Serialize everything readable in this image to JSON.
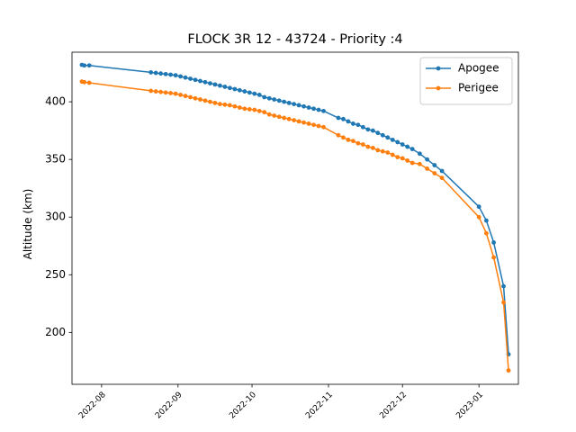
{
  "chart_data": {
    "type": "line",
    "title": "FLOCK 3R 12 - 43724 - Priority :4",
    "xlabel": "",
    "ylabel": "Altitude (km)",
    "x_tick_labels": [
      "2022-08",
      "2022-09",
      "2022-10",
      "2022-11",
      "2022-12",
      "2023-01"
    ],
    "x_ticks": [
      "2022-08-01",
      "2022-09-01",
      "2022-10-01",
      "2022-11-01",
      "2022-12-01",
      "2023-01-01"
    ],
    "xlim": [
      "2022-07-20",
      "2023-01-17"
    ],
    "y_ticks": [
      200,
      250,
      300,
      350,
      400
    ],
    "ylim": [
      155,
      443
    ],
    "grid": false,
    "legend_position": "top-right",
    "series": [
      {
        "name": "Apogee",
        "color": "#1f77b4",
        "points": [
          [
            "2022-07-24",
            432
          ],
          [
            "2022-07-25",
            431.5
          ],
          [
            "2022-07-27",
            431.5
          ],
          [
            "2022-08-21",
            425.5
          ],
          [
            "2022-08-23",
            425
          ],
          [
            "2022-08-25",
            424.5
          ],
          [
            "2022-08-27",
            424
          ],
          [
            "2022-08-29",
            423.5
          ],
          [
            "2022-08-31",
            423
          ],
          [
            "2022-09-02",
            422
          ],
          [
            "2022-09-04",
            421
          ],
          [
            "2022-09-06",
            420
          ],
          [
            "2022-09-08",
            419
          ],
          [
            "2022-09-10",
            418
          ],
          [
            "2022-09-12",
            417
          ],
          [
            "2022-09-14",
            416
          ],
          [
            "2022-09-16",
            415
          ],
          [
            "2022-09-18",
            414
          ],
          [
            "2022-09-20",
            413
          ],
          [
            "2022-09-22",
            412
          ],
          [
            "2022-09-24",
            411
          ],
          [
            "2022-09-26",
            410
          ],
          [
            "2022-09-28",
            409
          ],
          [
            "2022-09-30",
            408
          ],
          [
            "2022-10-02",
            407
          ],
          [
            "2022-10-04",
            406
          ],
          [
            "2022-10-06",
            404
          ],
          [
            "2022-10-08",
            403
          ],
          [
            "2022-10-10",
            402
          ],
          [
            "2022-10-12",
            401
          ],
          [
            "2022-10-14",
            400
          ],
          [
            "2022-10-16",
            399
          ],
          [
            "2022-10-18",
            398
          ],
          [
            "2022-10-20",
            397
          ],
          [
            "2022-10-22",
            396
          ],
          [
            "2022-10-24",
            395
          ],
          [
            "2022-10-26",
            394
          ],
          [
            "2022-10-28",
            393
          ],
          [
            "2022-10-30",
            392
          ],
          [
            "2022-11-05",
            386
          ],
          [
            "2022-11-07",
            385
          ],
          [
            "2022-11-09",
            383
          ],
          [
            "2022-11-11",
            381
          ],
          [
            "2022-11-13",
            380
          ],
          [
            "2022-11-15",
            378
          ],
          [
            "2022-11-17",
            376
          ],
          [
            "2022-11-19",
            375
          ],
          [
            "2022-11-21",
            373
          ],
          [
            "2022-11-23",
            371
          ],
          [
            "2022-11-25",
            369
          ],
          [
            "2022-11-27",
            367
          ],
          [
            "2022-11-29",
            365
          ],
          [
            "2022-12-01",
            363
          ],
          [
            "2022-12-03",
            361
          ],
          [
            "2022-12-05",
            359
          ],
          [
            "2022-12-08",
            355
          ],
          [
            "2022-12-11",
            350
          ],
          [
            "2022-12-14",
            345
          ],
          [
            "2022-12-17",
            340
          ],
          [
            "2023-01-01",
            309
          ],
          [
            "2023-01-04",
            297
          ],
          [
            "2023-01-07",
            278
          ],
          [
            "2023-01-11",
            240
          ],
          [
            "2023-01-13",
            181
          ]
        ]
      },
      {
        "name": "Perigee",
        "color": "#ff7f0e",
        "points": [
          [
            "2022-07-24",
            417.5
          ],
          [
            "2022-07-25",
            417
          ],
          [
            "2022-07-27",
            416.5
          ],
          [
            "2022-08-21",
            409.5
          ],
          [
            "2022-08-23",
            409
          ],
          [
            "2022-08-25",
            408.5
          ],
          [
            "2022-08-27",
            408
          ],
          [
            "2022-08-29",
            407.5
          ],
          [
            "2022-08-31",
            407
          ],
          [
            "2022-09-02",
            406
          ],
          [
            "2022-09-04",
            405
          ],
          [
            "2022-09-06",
            404
          ],
          [
            "2022-09-08",
            403
          ],
          [
            "2022-09-10",
            402
          ],
          [
            "2022-09-12",
            401
          ],
          [
            "2022-09-14",
            400
          ],
          [
            "2022-09-16",
            399
          ],
          [
            "2022-09-18",
            398
          ],
          [
            "2022-09-20",
            397.5
          ],
          [
            "2022-09-22",
            397
          ],
          [
            "2022-09-24",
            396
          ],
          [
            "2022-09-26",
            395
          ],
          [
            "2022-09-28",
            394
          ],
          [
            "2022-09-30",
            393.5
          ],
          [
            "2022-10-02",
            393
          ],
          [
            "2022-10-04",
            392
          ],
          [
            "2022-10-06",
            391
          ],
          [
            "2022-10-08",
            389
          ],
          [
            "2022-10-10",
            388
          ],
          [
            "2022-10-12",
            387
          ],
          [
            "2022-10-14",
            386
          ],
          [
            "2022-10-16",
            385
          ],
          [
            "2022-10-18",
            384
          ],
          [
            "2022-10-20",
            383
          ],
          [
            "2022-10-22",
            382
          ],
          [
            "2022-10-24",
            381
          ],
          [
            "2022-10-26",
            380
          ],
          [
            "2022-10-28",
            379
          ],
          [
            "2022-10-30",
            378
          ],
          [
            "2022-11-05",
            371
          ],
          [
            "2022-11-07",
            369
          ],
          [
            "2022-11-09",
            367
          ],
          [
            "2022-11-11",
            366
          ],
          [
            "2022-11-13",
            364
          ],
          [
            "2022-11-15",
            363
          ],
          [
            "2022-11-17",
            361
          ],
          [
            "2022-11-19",
            360
          ],
          [
            "2022-11-21",
            358
          ],
          [
            "2022-11-23",
            357
          ],
          [
            "2022-11-25",
            356
          ],
          [
            "2022-11-27",
            354
          ],
          [
            "2022-11-29",
            352
          ],
          [
            "2022-12-01",
            351
          ],
          [
            "2022-12-03",
            349
          ],
          [
            "2022-12-05",
            347
          ],
          [
            "2022-12-08",
            346
          ],
          [
            "2022-12-11",
            342
          ],
          [
            "2022-12-14",
            338
          ],
          [
            "2022-12-17",
            334
          ],
          [
            "2023-01-01",
            300
          ],
          [
            "2023-01-04",
            286
          ],
          [
            "2023-01-07",
            265
          ],
          [
            "2023-01-11",
            226
          ],
          [
            "2023-01-13",
            167
          ]
        ]
      }
    ]
  }
}
